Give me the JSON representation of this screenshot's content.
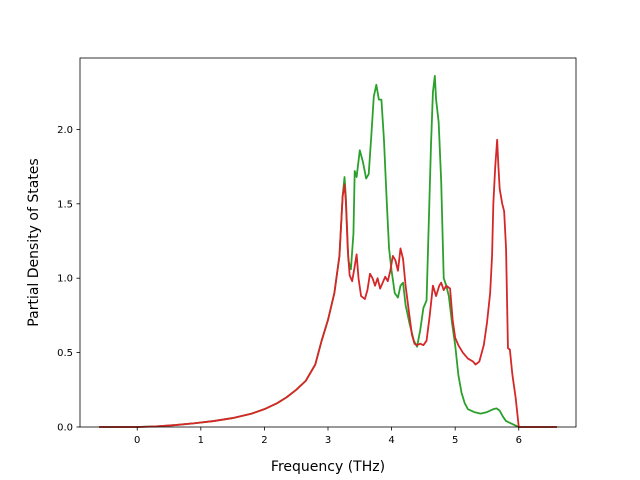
{
  "chart_data": {
    "type": "line",
    "xlabel": "Frequency (THz)",
    "ylabel": "Partial Density of States",
    "xlim": [
      -0.9,
      6.9
    ],
    "ylim": [
      0,
      2.48
    ],
    "xticks": [
      {
        "value": 0,
        "label": "0"
      },
      {
        "value": 1,
        "label": "1"
      },
      {
        "value": 2,
        "label": "2"
      },
      {
        "value": 3,
        "label": "3"
      },
      {
        "value": 4,
        "label": "4"
      },
      {
        "value": 5,
        "label": "5"
      },
      {
        "value": 6,
        "label": "6"
      }
    ],
    "yticks": [
      {
        "value": 0,
        "label": "0.0"
      },
      {
        "value": 0.5,
        "label": "0.5"
      },
      {
        "value": 1.0,
        "label": "1.0"
      },
      {
        "value": 1.5,
        "label": "1.5"
      },
      {
        "value": 2.0,
        "label": "2.0"
      }
    ],
    "grid": false,
    "series": [
      {
        "color": "#2ca02c",
        "points": [
          [
            -0.6,
            0
          ],
          [
            -0.3,
            0
          ],
          [
            0,
            0
          ],
          [
            0.3,
            0.004
          ],
          [
            0.6,
            0.013
          ],
          [
            0.9,
            0.025
          ],
          [
            1.2,
            0.04
          ],
          [
            1.5,
            0.06
          ],
          [
            1.8,
            0.09
          ],
          [
            2.0,
            0.12
          ],
          [
            2.2,
            0.16
          ],
          [
            2.35,
            0.2
          ],
          [
            2.5,
            0.25
          ],
          [
            2.65,
            0.31
          ],
          [
            2.8,
            0.42
          ],
          [
            2.9,
            0.58
          ],
          [
            3.0,
            0.72
          ],
          [
            3.1,
            0.9
          ],
          [
            3.18,
            1.15
          ],
          [
            3.23,
            1.55
          ],
          [
            3.26,
            1.68
          ],
          [
            3.28,
            1.55
          ],
          [
            3.32,
            1.12
          ],
          [
            3.36,
            1.06
          ],
          [
            3.4,
            1.3
          ],
          [
            3.42,
            1.72
          ],
          [
            3.45,
            1.68
          ],
          [
            3.5,
            1.86
          ],
          [
            3.55,
            1.78
          ],
          [
            3.6,
            1.67
          ],
          [
            3.64,
            1.7
          ],
          [
            3.68,
            1.95
          ],
          [
            3.72,
            2.22
          ],
          [
            3.76,
            2.3
          ],
          [
            3.8,
            2.2
          ],
          [
            3.84,
            2.2
          ],
          [
            3.88,
            1.93
          ],
          [
            3.92,
            1.55
          ],
          [
            3.96,
            1.2
          ],
          [
            4.0,
            1.05
          ],
          [
            4.05,
            0.9
          ],
          [
            4.1,
            0.87
          ],
          [
            4.14,
            0.95
          ],
          [
            4.18,
            0.97
          ],
          [
            4.22,
            0.82
          ],
          [
            4.28,
            0.7
          ],
          [
            4.35,
            0.58
          ],
          [
            4.4,
            0.54
          ],
          [
            4.45,
            0.65
          ],
          [
            4.5,
            0.8
          ],
          [
            4.55,
            0.85
          ],
          [
            4.58,
            1.3
          ],
          [
            4.62,
            1.9
          ],
          [
            4.65,
            2.25
          ],
          [
            4.68,
            2.36
          ],
          [
            4.7,
            2.2
          ],
          [
            4.74,
            2.05
          ],
          [
            4.78,
            1.65
          ],
          [
            4.82,
            1.0
          ],
          [
            4.86,
            0.95
          ],
          [
            4.9,
            0.88
          ],
          [
            4.95,
            0.7
          ],
          [
            5.0,
            0.55
          ],
          [
            5.05,
            0.35
          ],
          [
            5.1,
            0.23
          ],
          [
            5.15,
            0.16
          ],
          [
            5.2,
            0.12
          ],
          [
            5.3,
            0.1
          ],
          [
            5.4,
            0.09
          ],
          [
            5.5,
            0.1
          ],
          [
            5.6,
            0.12
          ],
          [
            5.65,
            0.125
          ],
          [
            5.7,
            0.11
          ],
          [
            5.75,
            0.07
          ],
          [
            5.8,
            0.04
          ],
          [
            5.9,
            0.02
          ],
          [
            6.0,
            0
          ],
          [
            6.3,
            0
          ],
          [
            6.6,
            0
          ]
        ]
      },
      {
        "color": "#d62728",
        "points": [
          [
            -0.6,
            0
          ],
          [
            -0.3,
            0
          ],
          [
            0,
            0
          ],
          [
            0.3,
            0.004
          ],
          [
            0.6,
            0.013
          ],
          [
            0.9,
            0.025
          ],
          [
            1.2,
            0.04
          ],
          [
            1.5,
            0.06
          ],
          [
            1.8,
            0.09
          ],
          [
            2.0,
            0.12
          ],
          [
            2.2,
            0.16
          ],
          [
            2.35,
            0.2
          ],
          [
            2.5,
            0.25
          ],
          [
            2.65,
            0.31
          ],
          [
            2.8,
            0.42
          ],
          [
            2.9,
            0.58
          ],
          [
            3.0,
            0.72
          ],
          [
            3.1,
            0.9
          ],
          [
            3.18,
            1.15
          ],
          [
            3.23,
            1.55
          ],
          [
            3.26,
            1.63
          ],
          [
            3.28,
            1.52
          ],
          [
            3.31,
            1.2
          ],
          [
            3.34,
            1.02
          ],
          [
            3.38,
            0.98
          ],
          [
            3.42,
            1.08
          ],
          [
            3.45,
            1.16
          ],
          [
            3.48,
            1.0
          ],
          [
            3.52,
            0.88
          ],
          [
            3.58,
            0.86
          ],
          [
            3.62,
            0.92
          ],
          [
            3.66,
            1.03
          ],
          [
            3.7,
            1.0
          ],
          [
            3.74,
            0.95
          ],
          [
            3.78,
            1.0
          ],
          [
            3.82,
            0.93
          ],
          [
            3.86,
            0.97
          ],
          [
            3.9,
            1.01
          ],
          [
            3.94,
            0.98
          ],
          [
            3.98,
            1.05
          ],
          [
            4.02,
            1.15
          ],
          [
            4.06,
            1.12
          ],
          [
            4.1,
            1.05
          ],
          [
            4.14,
            1.2
          ],
          [
            4.18,
            1.13
          ],
          [
            4.22,
            0.95
          ],
          [
            4.28,
            0.75
          ],
          [
            4.32,
            0.62
          ],
          [
            4.36,
            0.56
          ],
          [
            4.4,
            0.55
          ],
          [
            4.45,
            0.56
          ],
          [
            4.5,
            0.55
          ],
          [
            4.55,
            0.58
          ],
          [
            4.6,
            0.75
          ],
          [
            4.65,
            0.95
          ],
          [
            4.7,
            0.88
          ],
          [
            4.75,
            0.95
          ],
          [
            4.78,
            0.97
          ],
          [
            4.82,
            0.92
          ],
          [
            4.86,
            0.95
          ],
          [
            4.92,
            0.93
          ],
          [
            4.96,
            0.72
          ],
          [
            5.0,
            0.6
          ],
          [
            5.05,
            0.55
          ],
          [
            5.12,
            0.5
          ],
          [
            5.2,
            0.46
          ],
          [
            5.28,
            0.44
          ],
          [
            5.32,
            0.42
          ],
          [
            5.38,
            0.44
          ],
          [
            5.45,
            0.55
          ],
          [
            5.5,
            0.7
          ],
          [
            5.55,
            0.9
          ],
          [
            5.58,
            1.15
          ],
          [
            5.6,
            1.5
          ],
          [
            5.63,
            1.75
          ],
          [
            5.66,
            1.93
          ],
          [
            5.68,
            1.75
          ],
          [
            5.7,
            1.6
          ],
          [
            5.74,
            1.5
          ],
          [
            5.77,
            1.45
          ],
          [
            5.8,
            1.2
          ],
          [
            5.83,
            0.53
          ],
          [
            5.86,
            0.52
          ],
          [
            5.9,
            0.35
          ],
          [
            5.95,
            0.2
          ],
          [
            5.98,
            0.08
          ],
          [
            6.0,
            0
          ],
          [
            6.3,
            0
          ],
          [
            6.6,
            0
          ]
        ]
      }
    ]
  }
}
